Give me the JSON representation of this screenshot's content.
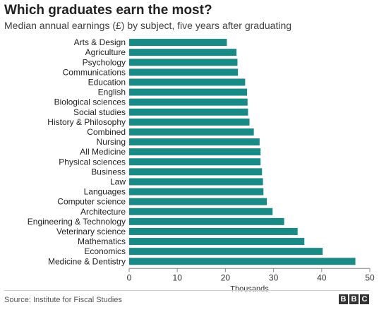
{
  "header": {
    "title": "Which graduates earn the most?",
    "subtitle": "Median annual earnings (£) by subject, five years after graduating"
  },
  "footer": {
    "source": "Source: Institute for Fiscal Studies",
    "logo_letters": [
      "B",
      "B",
      "C"
    ]
  },
  "colors": {
    "bar": "#1a8a87",
    "axis": "#888888",
    "gridline": "#dddddd",
    "label": "#222222"
  },
  "chart_data": {
    "type": "bar",
    "orientation": "horizontal",
    "title": "Which graduates earn the most?",
    "subtitle": "Median annual earnings (£) by subject, five years after graduating",
    "xlabel": "Thousands",
    "ylabel": "",
    "xlim": [
      0,
      50
    ],
    "xticks": [
      0,
      10,
      20,
      30,
      40,
      50
    ],
    "grid": false,
    "categories": [
      "Arts & Design",
      "Agriculture",
      "Psychology",
      "Communications",
      "Education",
      "English",
      "Biological sciences",
      "Social studies",
      "History & Philosophy",
      "Combined",
      "Nursing",
      "All Medicine",
      "Physical sciences",
      "Business",
      "Law",
      "Languages",
      "Computer science",
      "Architecture",
      "Engineering & Technology",
      "Veterinary science",
      "Mathematics",
      "Economics",
      "Medicine & Dentistry"
    ],
    "values": [
      20.3,
      22.3,
      22.5,
      22.6,
      24.1,
      24.5,
      24.6,
      24.7,
      25.0,
      25.9,
      27.1,
      27.3,
      27.3,
      27.6,
      27.8,
      27.9,
      28.6,
      29.8,
      32.2,
      35.0,
      36.4,
      40.2,
      47.0
    ]
  }
}
